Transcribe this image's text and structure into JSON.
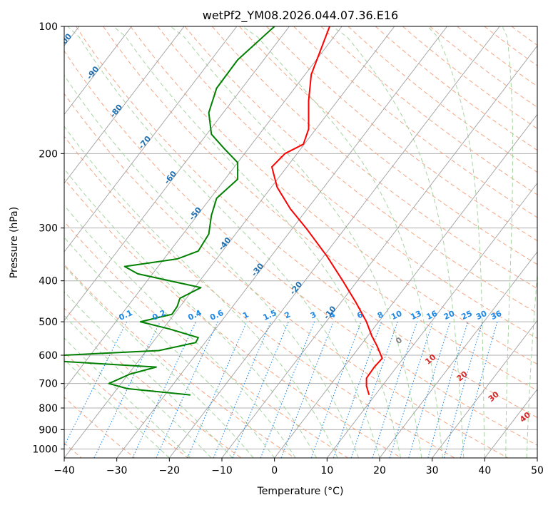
{
  "chart_data": {
    "type": "line",
    "title": "wetPf2_YM08.2026.044.07.36.E16",
    "xlabel": "Temperature (°C)",
    "ylabel": "Pressure (hPa)",
    "xlim": [
      -40,
      50
    ],
    "ylim": [
      1050,
      100
    ],
    "y_scale": "log",
    "x_ticks": [
      "−40",
      "−30",
      "−20",
      "−10",
      "0",
      "10",
      "20",
      "30",
      "40",
      "50"
    ],
    "y_ticks": [
      "100",
      "200",
      "300",
      "400",
      "500",
      "600",
      "700",
      "800",
      "900",
      "1000"
    ],
    "grid": true,
    "colors": {
      "temperature": "#ff0000",
      "dewpoint": "#008000",
      "isotherm": "#a0a0a0",
      "dry_adiabat": "#f4a582",
      "moist_adiabat": "#a6d4a0",
      "mixing_ratio": "#1e88e5",
      "grid": "#b0b0b0"
    },
    "series": [
      {
        "values": [
          [
            100,
            10.5
          ],
          [
            130,
            7.0
          ],
          [
            150,
            6.5
          ],
          [
            175,
            6.5
          ],
          [
            190,
            5.5
          ],
          [
            200,
            2.0
          ],
          [
            215,
            -0.5
          ],
          [
            240,
            0.5
          ],
          [
            270,
            3.0
          ],
          [
            300,
            6.0
          ],
          [
            350,
            10.0
          ],
          [
            400,
            13.0
          ],
          [
            450,
            15.5
          ],
          [
            500,
            17.5
          ],
          [
            540,
            18.5
          ],
          [
            570,
            19.5
          ],
          [
            610,
            20.5
          ],
          [
            640,
            19.0
          ],
          [
            680,
            17.5
          ],
          [
            710,
            17.5
          ],
          [
            745,
            18.0
          ]
        ]
      },
      {
        "values": [
          [
            100,
            0.0
          ],
          [
            120,
            -7.0
          ],
          [
            140,
            -11.0
          ],
          [
            160,
            -12.5
          ],
          [
            180,
            -12.0
          ],
          [
            195,
            -9.5
          ],
          [
            210,
            -7.0
          ],
          [
            230,
            -7.0
          ],
          [
            255,
            -11.0
          ],
          [
            280,
            -12.0
          ],
          [
            310,
            -12.5
          ],
          [
            340,
            -14.5
          ],
          [
            355,
            -18.5
          ],
          [
            370,
            -28.5
          ],
          [
            385,
            -26.0
          ],
          [
            415,
            -14.0
          ],
          [
            440,
            -18.0
          ],
          [
            460,
            -18.5
          ],
          [
            480,
            -19.5
          ],
          [
            500,
            -25.5
          ],
          [
            520,
            -20.0
          ],
          [
            545,
            -14.5
          ],
          [
            560,
            -15.0
          ],
          [
            585,
            -22.0
          ],
          [
            600,
            -40.0
          ],
          [
            620,
            -41.0
          ],
          [
            640,
            -22.5
          ],
          [
            665,
            -27.5
          ],
          [
            700,
            -31.5
          ],
          [
            720,
            -28.0
          ],
          [
            745,
            -16.0
          ]
        ]
      }
    ],
    "dry_adiabat_labels": [
      "-100",
      "-90",
      "-80",
      "-70",
      "-60",
      "-50",
      "-40",
      "-30",
      "-20",
      "-10"
    ],
    "moist_adiabat_labels": [
      "0",
      "10",
      "20",
      "30",
      "40"
    ],
    "mixing_ratio_labels": [
      "0.1",
      "0.2",
      "0.4",
      "0.6",
      "1",
      "1.5",
      "2",
      "3",
      "4",
      "6",
      "8",
      "10",
      "13",
      "16",
      "20",
      "25",
      "30",
      "36"
    ]
  }
}
